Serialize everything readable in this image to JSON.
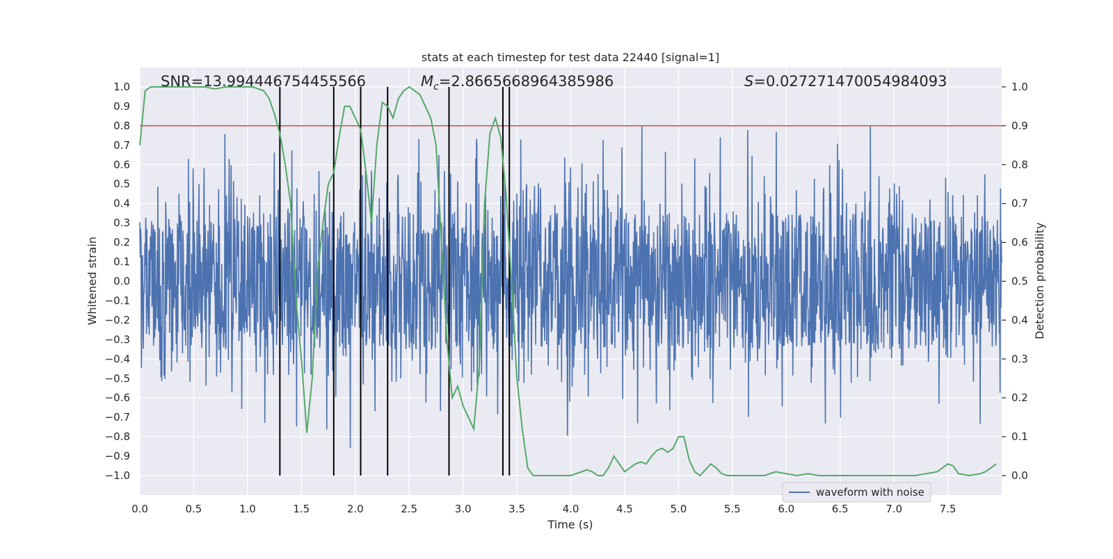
{
  "chart_data": {
    "type": "line",
    "title": "stats at each timestep for test data 22440 [signal=1]",
    "xlabel": "Time (s)",
    "ylabel": "Whitened strain",
    "ylabel_right": "Detection probability",
    "xlim": [
      0.0,
      8.0
    ],
    "ylim": [
      -1.1,
      1.1
    ],
    "ylim_right": [
      -0.05,
      1.05
    ],
    "xticks": [
      "0.0",
      "0.5",
      "1.0",
      "1.5",
      "2.0",
      "2.5",
      "3.0",
      "3.5",
      "4.0",
      "4.5",
      "5.0",
      "5.5",
      "6.0",
      "6.5",
      "7.0",
      "7.5"
    ],
    "yticks": [
      "1.0",
      "0.9",
      "0.8",
      "0.7",
      "0.6",
      "0.5",
      "0.4",
      "0.3",
      "0.2",
      "0.1",
      "0.0",
      "−0.1",
      "−0.2",
      "−0.3",
      "−0.4",
      "−0.5",
      "−0.6",
      "−0.7",
      "−0.8",
      "−0.9",
      "−1.0"
    ],
    "yticks_right": [
      "1.0",
      "0.9",
      "0.8",
      "0.7",
      "0.6",
      "0.5",
      "0.4",
      "0.3",
      "0.2",
      "0.1",
      "0.0"
    ],
    "grid": true,
    "legend": {
      "entries": [
        "waveform with noise"
      ],
      "location": "lower-right"
    },
    "stats": {
      "snr": "SNR=13.994446754455566",
      "mc_symbol": "M",
      "mc_sub": "c",
      "mc_value": "=2.8665668964385986",
      "s_symbol": "S",
      "s_value": "=0.027271470054984093"
    },
    "threshold": {
      "value": 0.9,
      "axis": "right",
      "color": "#c44e52"
    },
    "event_lines": [
      1.3,
      1.8,
      2.05,
      2.3,
      2.87,
      3.37,
      3.43
    ],
    "series": [
      {
        "name": "waveform with noise",
        "axis": "left",
        "color": "#4c72b0",
        "kind": "noise",
        "core_amplitude": 0.35,
        "peak_amplitude": 0.9,
        "duration": 8.0
      },
      {
        "name": "detection probability",
        "axis": "right",
        "color": "#55a868",
        "x": [
          0.0,
          0.05,
          0.1,
          0.2,
          0.3,
          0.4,
          0.5,
          0.6,
          0.7,
          0.8,
          0.9,
          1.0,
          1.05,
          1.1,
          1.15,
          1.2,
          1.25,
          1.3,
          1.35,
          1.4,
          1.45,
          1.5,
          1.55,
          1.6,
          1.65,
          1.7,
          1.75,
          1.8,
          1.85,
          1.9,
          1.95,
          2.0,
          2.05,
          2.1,
          2.15,
          2.2,
          2.25,
          2.3,
          2.35,
          2.4,
          2.45,
          2.5,
          2.55,
          2.6,
          2.65,
          2.7,
          2.75,
          2.8,
          2.85,
          2.9,
          2.95,
          3.0,
          3.05,
          3.1,
          3.15,
          3.2,
          3.25,
          3.3,
          3.35,
          3.4,
          3.45,
          3.5,
          3.55,
          3.6,
          3.65,
          3.7,
          3.75,
          3.8,
          3.9,
          4.0,
          4.1,
          4.15,
          4.2,
          4.25,
          4.3,
          4.35,
          4.4,
          4.45,
          4.5,
          4.55,
          4.6,
          4.65,
          4.7,
          4.75,
          4.8,
          4.85,
          4.9,
          4.95,
          5.0,
          5.05,
          5.1,
          5.15,
          5.2,
          5.25,
          5.3,
          5.35,
          5.4,
          5.45,
          5.5,
          5.6,
          5.7,
          5.8,
          5.9,
          6.0,
          6.1,
          6.2,
          6.3,
          6.4,
          6.5,
          6.6,
          6.7,
          6.8,
          6.9,
          7.0,
          7.1,
          7.2,
          7.3,
          7.4,
          7.5,
          7.55,
          7.6,
          7.7,
          7.8,
          7.85,
          7.9,
          7.95
        ],
        "y": [
          0.85,
          0.99,
          1.0,
          1.0,
          1.0,
          1.0,
          1.0,
          1.0,
          0.995,
          1.0,
          1.0,
          1.0,
          1.0,
          0.995,
          0.99,
          0.97,
          0.93,
          0.88,
          0.8,
          0.7,
          0.45,
          0.3,
          0.11,
          0.25,
          0.52,
          0.65,
          0.75,
          0.78,
          0.87,
          0.95,
          0.95,
          0.92,
          0.89,
          0.78,
          0.65,
          0.85,
          0.96,
          0.95,
          0.92,
          0.97,
          0.99,
          1.0,
          0.99,
          0.98,
          0.95,
          0.92,
          0.85,
          0.6,
          0.35,
          0.2,
          0.23,
          0.18,
          0.15,
          0.12,
          0.28,
          0.7,
          0.88,
          0.92,
          0.87,
          0.72,
          0.5,
          0.25,
          0.12,
          0.02,
          0.0,
          0.0,
          0.0,
          0.0,
          0.0,
          0.0,
          0.01,
          0.015,
          0.01,
          0.0,
          0.0,
          0.02,
          0.05,
          0.03,
          0.01,
          0.02,
          0.03,
          0.035,
          0.03,
          0.05,
          0.065,
          0.07,
          0.06,
          0.07,
          0.1,
          0.1,
          0.04,
          0.01,
          0.0,
          0.015,
          0.03,
          0.02,
          0.005,
          0.0,
          0.0,
          0.0,
          0.0,
          0.0,
          0.01,
          0.005,
          0.0,
          0.005,
          0.0,
          0.0,
          0.0,
          0.0,
          0.0,
          0.0,
          0.0,
          0.0,
          0.0,
          0.0,
          0.005,
          0.01,
          0.03,
          0.025,
          0.005,
          0.0,
          0.005,
          0.01,
          0.02,
          0.03
        ]
      }
    ]
  }
}
